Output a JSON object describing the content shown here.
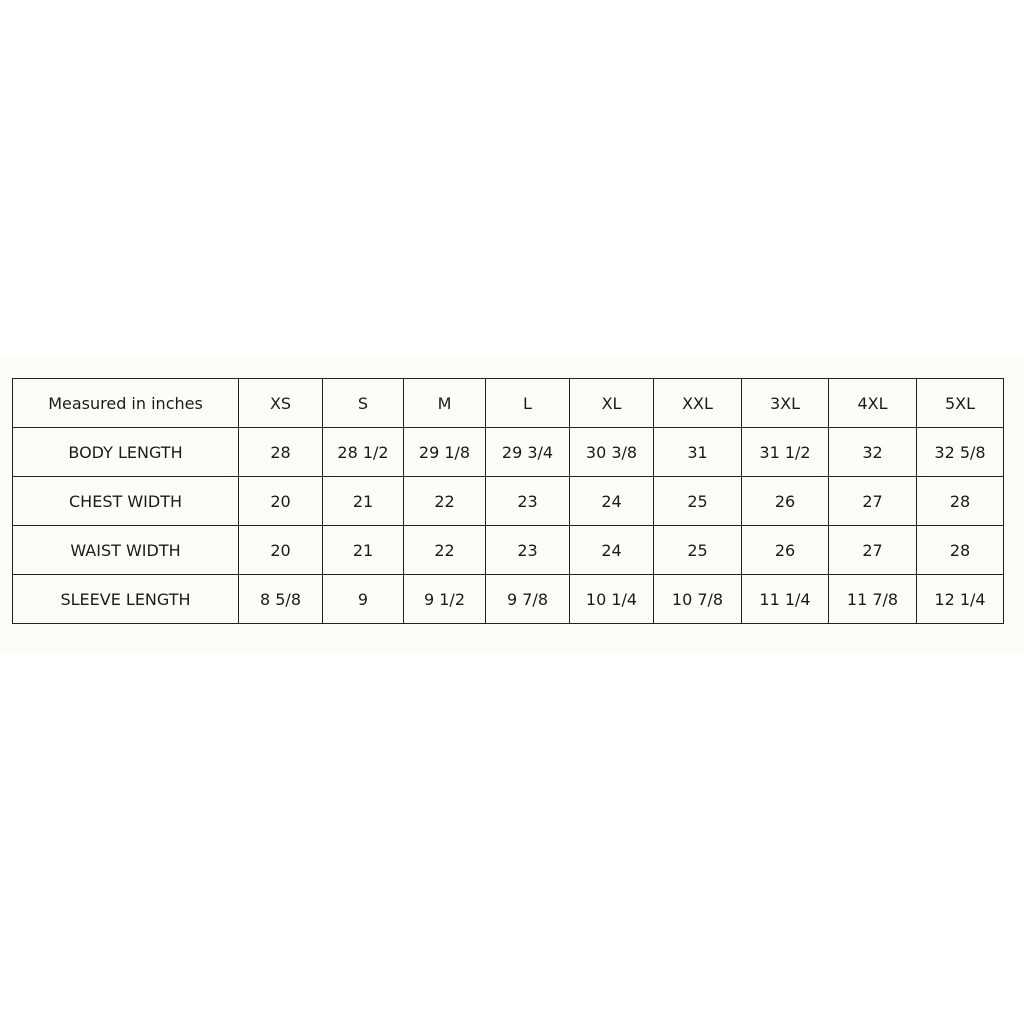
{
  "table": {
    "header": [
      "Measured in inches",
      "XS",
      "S",
      "M",
      "L",
      "XL",
      "XXL",
      "3XL",
      "4XL",
      "5XL"
    ],
    "rows": [
      [
        "BODY LENGTH",
        "28",
        "28 1/2",
        "29 1/8",
        "29 3/4",
        "30 3/8",
        "31",
        "31 1/2",
        "32",
        "32 5/8"
      ],
      [
        "CHEST WIDTH",
        "20",
        "21",
        "22",
        "23",
        "24",
        "25",
        "26",
        "27",
        "28"
      ],
      [
        "WAIST WIDTH",
        "20",
        "21",
        "22",
        "23",
        "24",
        "25",
        "26",
        "27",
        "28"
      ],
      [
        "SLEEVE LENGTH",
        "8 5/8",
        "9",
        "9 1/2",
        "9 7/8",
        "10 1/4",
        "10 7/8",
        "11 1/4",
        "11 7/8",
        "12 1/4"
      ]
    ]
  }
}
